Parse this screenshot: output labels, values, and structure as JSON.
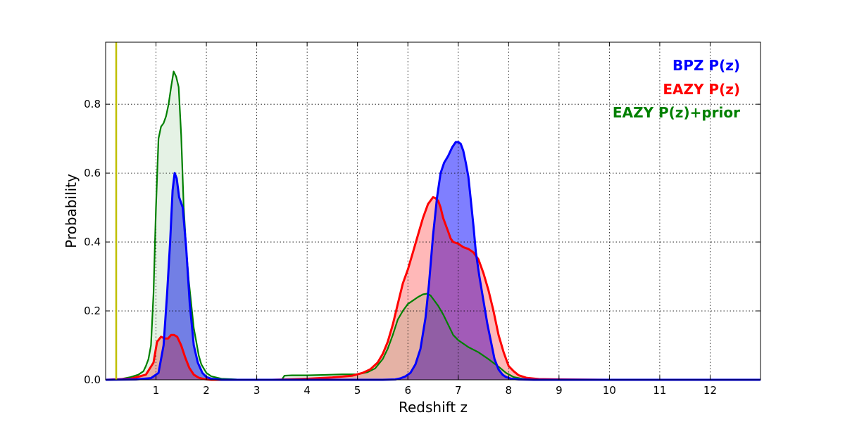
{
  "chart_data": {
    "type": "area",
    "title": "",
    "xlabel": "Redshift z",
    "ylabel": "Probability",
    "xlim": [
      0,
      13
    ],
    "ylim": [
      0,
      0.98
    ],
    "xticks": [
      1,
      2,
      3,
      4,
      5,
      6,
      7,
      8,
      9,
      10,
      11,
      12
    ],
    "xtick_labels": [
      "1",
      "2",
      "3",
      "4",
      "5",
      "6",
      "7",
      "8",
      "9",
      "10",
      "11",
      "12"
    ],
    "yticks": [
      0.0,
      0.2,
      0.4,
      0.6,
      0.8
    ],
    "ytick_labels": [
      "0.0",
      "0.2",
      "0.4",
      "0.6",
      "0.8"
    ],
    "grid": true,
    "legend_position": "top-right",
    "vline": {
      "x": 0.21,
      "color": "#bfbf00"
    },
    "series": [
      {
        "name": "BPZ P(z)",
        "color": "#0000ff",
        "fill": "#0000ff",
        "fill_opacity": 0.5,
        "x": [
          0,
          0.6,
          0.9,
          1.05,
          1.15,
          1.22,
          1.28,
          1.33,
          1.37,
          1.41,
          1.46,
          1.53,
          1.6,
          1.67,
          1.75,
          1.83,
          1.92,
          2.0,
          2.1,
          2.3,
          5.5,
          5.75,
          5.85,
          5.95,
          6.05,
          6.15,
          6.25,
          6.35,
          6.42,
          6.5,
          6.58,
          6.65,
          6.72,
          6.8,
          6.88,
          6.95,
          7.0,
          7.05,
          7.1,
          7.15,
          7.2,
          7.25,
          7.3,
          7.35,
          7.42,
          7.5,
          7.58,
          7.65,
          7.72,
          7.8,
          7.88,
          7.95,
          8.05,
          8.2,
          8.5,
          13
        ],
        "y": [
          0,
          0.001,
          0.005,
          0.02,
          0.1,
          0.25,
          0.4,
          0.55,
          0.6,
          0.585,
          0.53,
          0.5,
          0.38,
          0.22,
          0.1,
          0.05,
          0.02,
          0.008,
          0.003,
          0,
          0,
          0.001,
          0.004,
          0.01,
          0.02,
          0.045,
          0.09,
          0.18,
          0.28,
          0.42,
          0.53,
          0.6,
          0.63,
          0.65,
          0.675,
          0.69,
          0.69,
          0.685,
          0.665,
          0.63,
          0.59,
          0.52,
          0.45,
          0.37,
          0.3,
          0.23,
          0.16,
          0.11,
          0.06,
          0.03,
          0.015,
          0.008,
          0.003,
          0.001,
          0,
          0
        ]
      },
      {
        "name": "EAZY P(z)",
        "color": "#ff0000",
        "fill": "#ff0000",
        "fill_opacity": 0.28,
        "x": [
          0,
          0.5,
          0.8,
          0.95,
          1.02,
          1.1,
          1.17,
          1.24,
          1.3,
          1.36,
          1.42,
          1.5,
          1.58,
          1.66,
          1.75,
          1.85,
          1.95,
          2.1,
          2.4,
          3.3,
          3.6,
          4.0,
          4.5,
          4.9,
          5.1,
          5.25,
          5.4,
          5.5,
          5.6,
          5.7,
          5.8,
          5.9,
          6.0,
          6.1,
          6.2,
          6.3,
          6.4,
          6.5,
          6.55,
          6.6,
          6.65,
          6.7,
          6.75,
          6.8,
          6.85,
          6.9,
          7.0,
          7.1,
          7.2,
          7.3,
          7.4,
          7.5,
          7.6,
          7.7,
          7.8,
          7.9,
          8.0,
          8.1,
          8.2,
          8.35,
          8.6,
          9.0,
          10.0,
          13
        ],
        "y": [
          0,
          0.003,
          0.015,
          0.05,
          0.11,
          0.125,
          0.12,
          0.12,
          0.13,
          0.13,
          0.125,
          0.1,
          0.065,
          0.035,
          0.015,
          0.006,
          0.002,
          0,
          0,
          0,
          0.001,
          0.003,
          0.007,
          0.012,
          0.02,
          0.03,
          0.05,
          0.075,
          0.11,
          0.16,
          0.22,
          0.28,
          0.32,
          0.37,
          0.42,
          0.47,
          0.51,
          0.53,
          0.527,
          0.52,
          0.5,
          0.47,
          0.45,
          0.43,
          0.41,
          0.4,
          0.395,
          0.385,
          0.38,
          0.37,
          0.35,
          0.31,
          0.26,
          0.2,
          0.13,
          0.08,
          0.04,
          0.025,
          0.013,
          0.006,
          0.002,
          0.001,
          0,
          0
        ]
      },
      {
        "name": "EAZY P(z)+prior",
        "color": "#008000",
        "fill": "#008000",
        "fill_opacity": 0.1,
        "x": [
          0,
          0.3,
          0.5,
          0.65,
          0.75,
          0.8,
          0.85,
          0.9,
          0.95,
          1.0,
          1.05,
          1.1,
          1.15,
          1.2,
          1.25,
          1.3,
          1.35,
          1.4,
          1.45,
          1.5,
          1.55,
          1.6,
          1.65,
          1.7,
          1.75,
          1.8,
          1.85,
          1.9,
          2.0,
          2.1,
          2.3,
          2.6,
          3.0,
          3.5,
          3.55,
          3.7,
          4.0,
          4.3,
          4.7,
          5.0,
          5.2,
          5.35,
          5.5,
          5.6,
          5.7,
          5.8,
          5.9,
          6.0,
          6.1,
          6.2,
          6.3,
          6.38,
          6.45,
          6.5,
          6.6,
          6.7,
          6.8,
          6.9,
          7.0,
          7.2,
          7.4,
          7.6,
          7.8,
          7.95,
          8.1,
          8.3,
          8.6,
          13
        ],
        "y": [
          0,
          0.002,
          0.008,
          0.015,
          0.025,
          0.04,
          0.06,
          0.1,
          0.25,
          0.5,
          0.7,
          0.735,
          0.745,
          0.765,
          0.8,
          0.85,
          0.895,
          0.88,
          0.85,
          0.71,
          0.5,
          0.38,
          0.29,
          0.22,
          0.15,
          0.11,
          0.07,
          0.045,
          0.02,
          0.01,
          0.003,
          0.001,
          0,
          0.001,
          0.012,
          0.013,
          0.013,
          0.014,
          0.016,
          0.016,
          0.022,
          0.033,
          0.06,
          0.09,
          0.13,
          0.175,
          0.2,
          0.22,
          0.23,
          0.24,
          0.248,
          0.25,
          0.245,
          0.235,
          0.215,
          0.19,
          0.16,
          0.13,
          0.115,
          0.095,
          0.08,
          0.06,
          0.038,
          0.02,
          0.008,
          0.002,
          0,
          0
        ]
      }
    ]
  }
}
